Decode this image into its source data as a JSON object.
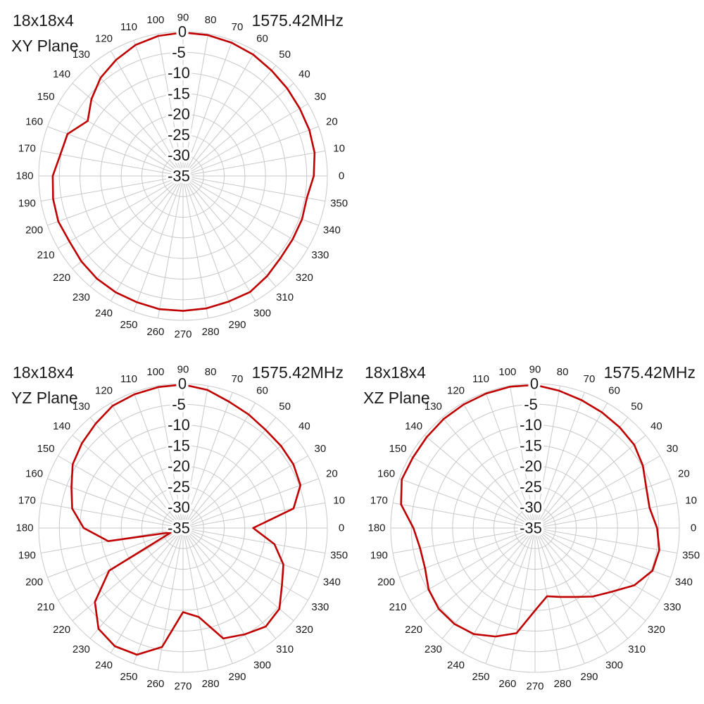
{
  "page": {
    "background": "#ffffff",
    "grid_color": "#c8c8c8",
    "trace_color": "#c00000",
    "text_color": "#1a1a1a"
  },
  "chart_data": [
    {
      "type": "radar",
      "id": "xy-plane",
      "size_label": "18x18x4",
      "plane_label": "XY Plane",
      "freq_label": "1575.42MHz",
      "angle_unit": "deg",
      "angle_labels": [
        0,
        10,
        20,
        30,
        40,
        50,
        60,
        70,
        80,
        90,
        100,
        110,
        120,
        130,
        140,
        150,
        160,
        170,
        180,
        190,
        200,
        210,
        220,
        230,
        240,
        250,
        260,
        270,
        280,
        290,
        300,
        310,
        320,
        330,
        340,
        350
      ],
      "radial_axis": {
        "min": -35,
        "max": 0,
        "step": 5,
        "tick_labels": [
          "0",
          "-5",
          "-10",
          "-15",
          "-20",
          "-25",
          "-30",
          "-35"
        ]
      },
      "grid": "on",
      "legend": "none",
      "values_db": [
        -3.3,
        -2.6,
        -2.4,
        -2.3,
        -2.0,
        -1.6,
        -1.0,
        -0.6,
        -0.3,
        -0.2,
        -0.5,
        -1.2,
        -2.5,
        -3.9,
        -6.0,
        -8.3,
        -5.2,
        -4.8,
        -3.4,
        -3.0,
        -2.8,
        -3.2,
        -2.8,
        -2.5,
        -2.4,
        -2.4,
        -2.2,
        -2.3,
        -2.4,
        -2.6,
        -2.5,
        -3.3,
        -4.1,
        -4.3,
        -4.3,
        -4.5
      ]
    },
    {
      "type": "radar",
      "id": "yz-plane",
      "size_label": "18x18x4",
      "plane_label": "YZ Plane",
      "freq_label": "1575.42MHz",
      "angle_unit": "deg",
      "angle_labels": [
        0,
        10,
        20,
        30,
        40,
        50,
        60,
        70,
        80,
        90,
        100,
        110,
        120,
        130,
        140,
        150,
        160,
        170,
        180,
        190,
        200,
        210,
        220,
        230,
        240,
        250,
        260,
        270,
        280,
        290,
        300,
        310,
        320,
        330,
        340,
        350
      ],
      "radial_axis": {
        "min": -35,
        "max": 0,
        "step": 5,
        "tick_labels": [
          "0",
          "-5",
          "-10",
          "-15",
          "-20",
          "-25",
          "-30",
          "-35"
        ]
      },
      "grid": "on",
      "legend": "none",
      "values_db": [
        -18.0,
        -7.8,
        -4.7,
        -4.1,
        -4.0,
        -3.9,
        -3.2,
        -2.4,
        -1.0,
        -0.2,
        -0.3,
        -0.5,
        -0.8,
        -2.0,
        -3.0,
        -4.1,
        -6.2,
        -7.7,
        -10.9,
        -16.6,
        -32.0,
        -14.3,
        -7.1,
        -3.1,
        -1.9,
        -2.3,
        -5.7,
        -14.6,
        -13.1,
        -6.5,
        -5.2,
        -3.8,
        -4.5,
        -7.3,
        -9.1,
        -12.5
      ]
    },
    {
      "type": "radar",
      "id": "xz-plane",
      "size_label": "18x18x4",
      "plane_label": "XZ Plane",
      "freq_label": "1575.42MHz",
      "angle_unit": "deg",
      "angle_labels": [
        0,
        10,
        20,
        30,
        40,
        50,
        60,
        70,
        80,
        90,
        100,
        110,
        120,
        130,
        140,
        150,
        160,
        170,
        180,
        190,
        200,
        210,
        220,
        230,
        240,
        250,
        260,
        270,
        280,
        290,
        300,
        310,
        320,
        330,
        340,
        350
      ],
      "radial_axis": {
        "min": -35,
        "max": 0,
        "step": 5,
        "tick_labels": [
          "0",
          "-5",
          "-10",
          "-15",
          "-20",
          "-25",
          "-30",
          "-35"
        ]
      },
      "grid": "on",
      "legend": "none",
      "values_db": [
        -5.4,
        -6.8,
        -6.3,
        -4.8,
        -3.6,
        -3.1,
        -2.6,
        -2.0,
        -1.2,
        -0.3,
        -0.2,
        -0.3,
        -0.4,
        -0.5,
        -0.7,
        -0.8,
        -0.6,
        -2.0,
        -5.5,
        -6.7,
        -6.6,
        -5.2,
        -4.5,
        -4.6,
        -5.3,
        -7.0,
        -9.1,
        -15.0,
        -18.2,
        -17.2,
        -15.7,
        -13.3,
        -10.9,
        -7.2,
        -4.7,
        -4.4
      ]
    }
  ]
}
